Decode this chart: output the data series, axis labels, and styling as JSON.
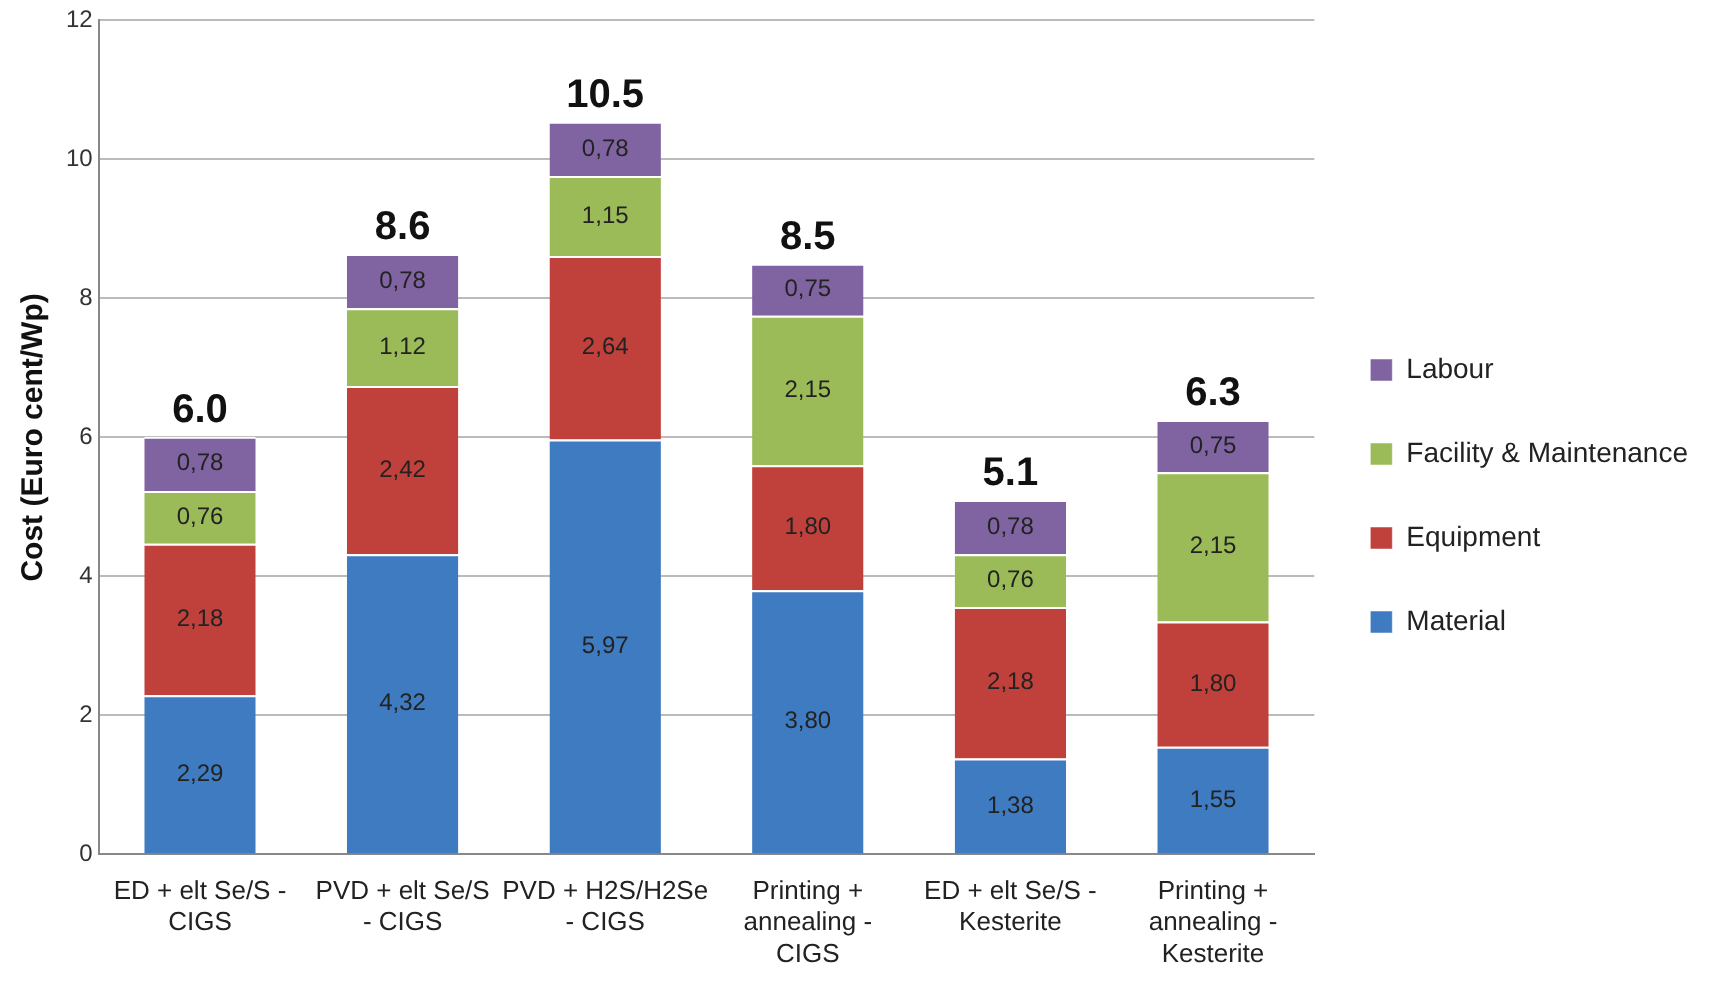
{
  "chart_data": {
    "type": "bar",
    "stacked": true,
    "ylabel": "Cost (Euro cent/Wp)",
    "categories": [
      "ED + elt Se/S - CIGS",
      "PVD + elt Se/S - CIGS",
      "PVD + H2S/H2Se - CIGS",
      "Printing + annealing - CIGS",
      "ED + elt Se/S - Kesterite",
      "Printing + annealing - Kesterite"
    ],
    "series": [
      {
        "name": "Material",
        "color": "#3f7bc1",
        "values": [
          2.29,
          4.32,
          5.97,
          3.8,
          1.38,
          1.55
        ],
        "value_labels": [
          "2,29",
          "4,32",
          "5,97",
          "3,80",
          "1,38",
          "1,55"
        ]
      },
      {
        "name": "Equipment",
        "color": "#c0403c",
        "values": [
          2.18,
          2.42,
          2.64,
          1.8,
          2.18,
          1.8
        ],
        "value_labels": [
          "2,18",
          "2,42",
          "2,64",
          "1,80",
          "2,18",
          "1,80"
        ]
      },
      {
        "name": "Facility & Maintenance",
        "color": "#9bbb59",
        "values": [
          0.76,
          1.12,
          1.15,
          2.15,
          0.76,
          2.15
        ],
        "value_labels": [
          "0,76",
          "1,12",
          "1,15",
          "2,15",
          "0,76",
          "2,15"
        ]
      },
      {
        "name": "Labour",
        "color": "#8064a2",
        "values": [
          0.78,
          0.78,
          0.78,
          0.75,
          0.78,
          0.75
        ],
        "value_labels": [
          "0,78",
          "0,78",
          "0,78",
          "0,75",
          "0,78",
          "0,75"
        ]
      }
    ],
    "totals": [
      "6.0",
      "8.6",
      "10.5",
      "8.5",
      "5.1",
      "6.3"
    ],
    "ylim": [
      0,
      12
    ],
    "yticks": [
      0,
      2,
      4,
      6,
      8,
      10,
      12
    ],
    "grid": "y",
    "legend": "right"
  }
}
